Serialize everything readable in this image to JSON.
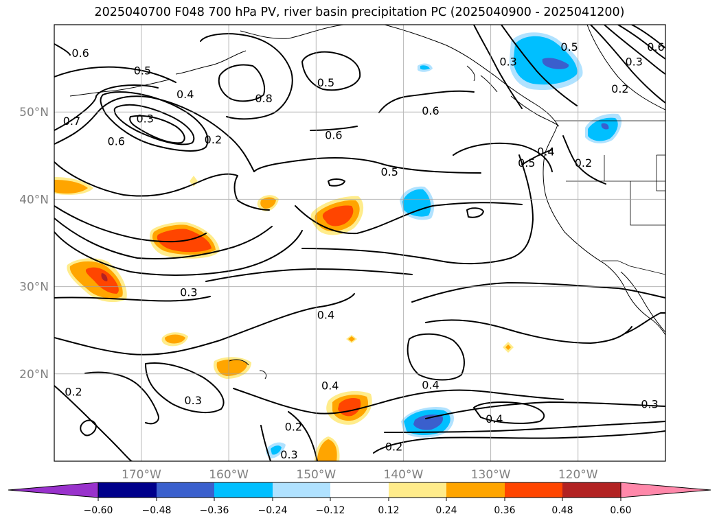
{
  "title": "2025040700 F048 700 hPa PV, river basin precipitation PC (2025040900 - 2025041200)",
  "map": {
    "lon_range": [
      -180,
      -110
    ],
    "lat_range": [
      10,
      60
    ],
    "lon_ticks": [
      -170,
      -160,
      -150,
      -140,
      -130,
      -120
    ],
    "lat_ticks": [
      20,
      30,
      40,
      50
    ],
    "lon_tick_labels": [
      "170°W",
      "160°W",
      "150°W",
      "140°W",
      "130°W",
      "120°W"
    ],
    "lat_tick_labels": [
      "20°N",
      "30°N",
      "40°N",
      "50°N"
    ],
    "gridlines": true
  },
  "colorbar": {
    "colors": [
      "#9932cc",
      "#00008b",
      "#3a5fcd",
      "#00bfff",
      "#b0e2ff",
      "#ffffff",
      "#ffec8b",
      "#ffa500",
      "#ff4500",
      "#b22222",
      "#ff88aa"
    ],
    "boundaries": [
      -0.6,
      -0.48,
      -0.36,
      -0.24,
      -0.12,
      0.12,
      0.24,
      0.36,
      0.48,
      0.6
    ],
    "labels": [
      "−0.60",
      "−0.48",
      "−0.36",
      "−0.24",
      "−0.12",
      "0.12",
      "0.24",
      "0.36",
      "0.48",
      "0.60"
    ],
    "extend": "both"
  },
  "contour_labels": [
    {
      "text": "0.6",
      "lon": -177,
      "lat": 56.7
    },
    {
      "text": "0.5",
      "lon": -169.9,
      "lat": 54.7
    },
    {
      "text": "0.4",
      "lon": -165,
      "lat": 52
    },
    {
      "text": "0.3",
      "lon": -169.6,
      "lat": 49.2
    },
    {
      "text": "0.2",
      "lon": -161.8,
      "lat": 46.8
    },
    {
      "text": "0.6",
      "lon": -172.9,
      "lat": 46.6
    },
    {
      "text": "0.7",
      "lon": -178,
      "lat": 48.9
    },
    {
      "text": "0.8",
      "lon": -156,
      "lat": 51.5
    },
    {
      "text": "0.5",
      "lon": -148.9,
      "lat": 53.3
    },
    {
      "text": "0.6",
      "lon": -136.9,
      "lat": 50.1
    },
    {
      "text": "0.6",
      "lon": -148,
      "lat": 47.3
    },
    {
      "text": "0.5",
      "lon": -141.6,
      "lat": 43.1
    },
    {
      "text": "0.3",
      "lon": -128,
      "lat": 55.7
    },
    {
      "text": "0.5",
      "lon": -121,
      "lat": 57.4
    },
    {
      "text": "0.3",
      "lon": -113.6,
      "lat": 55.7
    },
    {
      "text": "0.6",
      "lon": -111.1,
      "lat": 57.4
    },
    {
      "text": "0.2",
      "lon": -115.2,
      "lat": 52.6
    },
    {
      "text": "0.5",
      "lon": -125.9,
      "lat": 44.1
    },
    {
      "text": "0.4",
      "lon": -123.7,
      "lat": 45.4
    },
    {
      "text": "0.2",
      "lon": -119.4,
      "lat": 44.1
    },
    {
      "text": "0.3",
      "lon": -164.6,
      "lat": 29.3
    },
    {
      "text": "0.4",
      "lon": -148.9,
      "lat": 26.7
    },
    {
      "text": "0.4",
      "lon": -136.9,
      "lat": 18.7
    },
    {
      "text": "0.2",
      "lon": -177.8,
      "lat": 17.9
    },
    {
      "text": "0.3",
      "lon": -164.1,
      "lat": 16.9
    },
    {
      "text": "0.4",
      "lon": -148.4,
      "lat": 18.6
    },
    {
      "text": "0.3",
      "lon": -111.8,
      "lat": 16.5
    },
    {
      "text": "0.4",
      "lon": -129.6,
      "lat": 14.8
    },
    {
      "text": "0.2",
      "lon": -152.6,
      "lat": 13.9
    },
    {
      "text": "0.3",
      "lon": -153.1,
      "lat": 10.7
    },
    {
      "text": "0.2",
      "lon": -141.1,
      "lat": 11.6
    }
  ]
}
